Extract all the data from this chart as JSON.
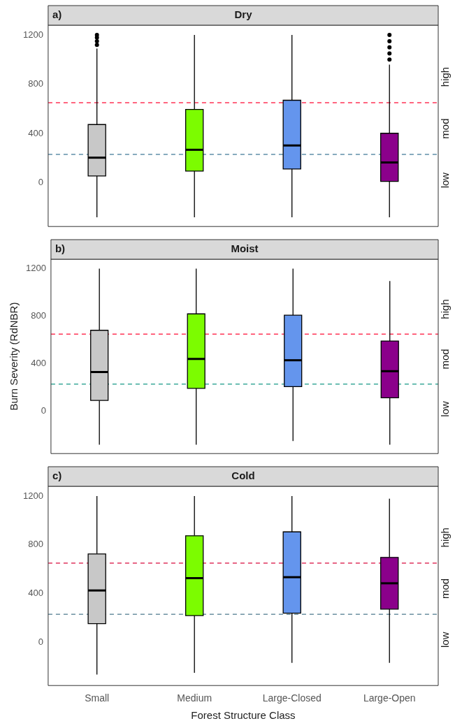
{
  "chart_data": [
    {
      "type": "box",
      "title": "Dry",
      "annotations": [
        "a)",
        "high",
        "mod",
        "low"
      ],
      "categories": [
        null,
        null,
        null,
        null
      ],
      "colors": [
        "#c8c8c8",
        "#7cfc00",
        "#6495ed",
        "#8b008b"
      ],
      "boxes": [
        {
          "low": -280,
          "q1": 55,
          "median": 204,
          "q3": 473,
          "high": 1090,
          "outliers": [
            1120,
            1150,
            1180,
            1200
          ]
        },
        {
          "low": -280,
          "q1": 95,
          "median": 268,
          "q3": 596,
          "high": 1200
        },
        {
          "low": -280,
          "q1": 112,
          "median": 303,
          "q3": 670,
          "high": 1200
        },
        {
          "low": -280,
          "q1": 11,
          "median": 165,
          "q3": 402,
          "high": 960,
          "outliers": [
            1000,
            1050,
            1100,
            1150,
            1200
          ]
        }
      ],
      "ylim": [
        -355,
        1280
      ],
      "yticks": [
        0,
        400,
        800,
        1200
      ],
      "tick_labels": "y",
      "ref_lines": [
        {
          "axis": "y",
          "value": 650,
          "color": "#ff3355",
          "line_style": "dashed"
        },
        {
          "axis": "y",
          "value": 230,
          "color": "#5f8fa8",
          "line_style": "dashed"
        }
      ]
    },
    {
      "type": "box",
      "title": "Moist",
      "ylabel": "Burn Severity (RdNBR)",
      "annotations": [
        "b)",
        "high",
        "mod",
        "low"
      ],
      "categories": [
        null,
        null,
        null,
        null
      ],
      "colors": [
        "#c8c8c8",
        "#7cfc00",
        "#6495ed",
        "#8b008b"
      ],
      "boxes": [
        {
          "low": -280,
          "q1": 92,
          "median": 331,
          "q3": 682,
          "high": 1200
        },
        {
          "low": -280,
          "q1": 193,
          "median": 441,
          "q3": 820,
          "high": 1200
        },
        {
          "low": -250,
          "q1": 208,
          "median": 430,
          "q3": 809,
          "high": 1200
        },
        {
          "low": -280,
          "q1": 114,
          "median": 338,
          "q3": 592,
          "high": 1096
        }
      ],
      "ylim": [
        -355,
        1280
      ],
      "yticks": [
        0,
        400,
        800,
        1200
      ],
      "tick_labels": "y",
      "ref_lines": [
        {
          "axis": "y",
          "value": 650,
          "color": "#ff3355",
          "line_style": "dashed"
        },
        {
          "axis": "y",
          "value": 230,
          "color": "#3aa89a",
          "line_style": "dashed"
        }
      ]
    },
    {
      "type": "box",
      "title": "Cold",
      "xlabel": "Forest Structure Class",
      "annotations": [
        "c)",
        "high",
        "mod",
        "low"
      ],
      "categories": [
        "Small",
        "Medium",
        "Large-Closed",
        "Large-Open"
      ],
      "colors": [
        "#c8c8c8",
        "#7cfc00",
        "#6495ed",
        "#8b008b"
      ],
      "boxes": [
        {
          "low": -265,
          "q1": 153,
          "median": 425,
          "q3": 725,
          "high": 1200
        },
        {
          "low": -250,
          "q1": 219,
          "median": 526,
          "q3": 874,
          "high": 1200
        },
        {
          "low": -169,
          "q1": 239,
          "median": 534,
          "q3": 906,
          "high": 1200
        },
        {
          "low": -169,
          "q1": 272,
          "median": 484,
          "q3": 696,
          "high": 1178
        }
      ],
      "ylim": [
        -355,
        1280
      ],
      "yticks": [
        0,
        400,
        800,
        1200
      ],
      "ref_lines": [
        {
          "axis": "y",
          "value": 650,
          "color": "#e0335e",
          "line_style": "dashed"
        },
        {
          "axis": "y",
          "value": 230,
          "color": "#6a8fa0",
          "line_style": "dashed"
        }
      ]
    }
  ]
}
